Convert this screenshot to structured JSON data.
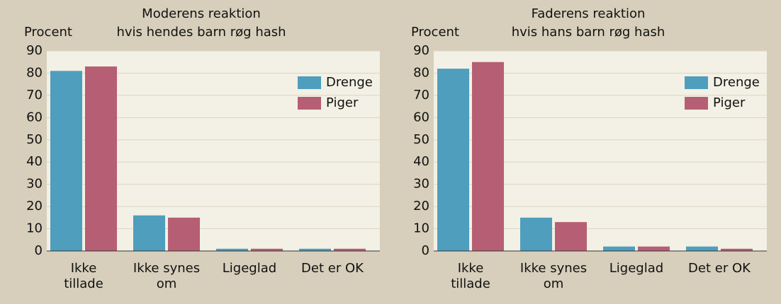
{
  "chart_data": [
    {
      "type": "bar",
      "title": [
        "Moderens reaktion",
        "hvis hendes barn røg hash"
      ],
      "y_label": "Procent",
      "categories": [
        [
          "Ikke",
          "tillade"
        ],
        [
          "Ikke synes",
          "om"
        ],
        [
          "Ligeglad"
        ],
        [
          "Det er OK"
        ]
      ],
      "series": [
        {
          "name": "Drenge",
          "color": "#4f9ebd",
          "values": [
            81,
            16,
            1,
            1
          ]
        },
        {
          "name": "Piger",
          "color": "#b65f74",
          "values": [
            83,
            15,
            1,
            1
          ]
        }
      ],
      "ylim": [
        0,
        90
      ],
      "yticks": [
        0,
        10,
        20,
        30,
        40,
        50,
        60,
        70,
        80,
        90
      ],
      "grid": true,
      "legend": "upper right"
    },
    {
      "type": "bar",
      "title": [
        "Faderens reaktion",
        "hvis hans barn røg hash"
      ],
      "y_label": "Procent",
      "categories": [
        [
          "Ikke",
          "tillade"
        ],
        [
          "Ikke synes",
          "om"
        ],
        [
          "Ligeglad"
        ],
        [
          "Det er OK"
        ]
      ],
      "series": [
        {
          "name": "Drenge",
          "color": "#4f9ebd",
          "values": [
            82,
            15,
            2,
            2
          ]
        },
        {
          "name": "Piger",
          "color": "#b65f74",
          "values": [
            85,
            13,
            2,
            1
          ]
        }
      ],
      "ylim": [
        0,
        90
      ],
      "yticks": [
        0,
        10,
        20,
        30,
        40,
        50,
        60,
        70,
        80,
        90
      ],
      "grid": true,
      "legend": "upper right"
    }
  ]
}
